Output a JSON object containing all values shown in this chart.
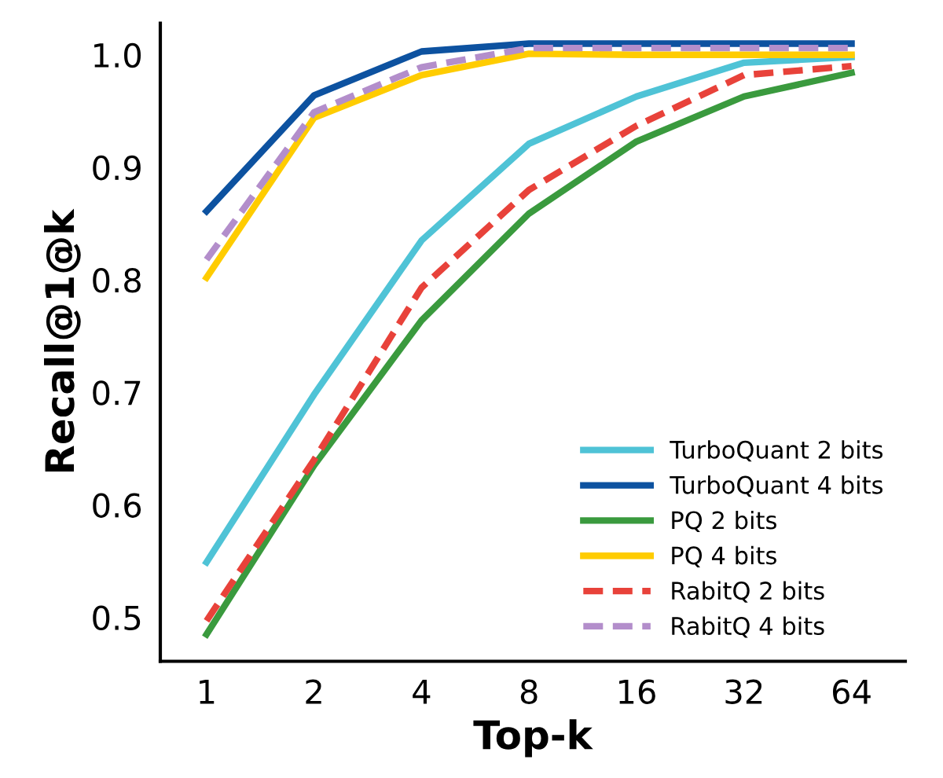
{
  "chart_data": {
    "type": "line",
    "xlabel": "Top-k",
    "ylabel": "Recall@1@k",
    "categories": [
      "1",
      "2",
      "4",
      "8",
      "16",
      "32",
      "64"
    ],
    "ylim": [
      0.461,
      1.028
    ],
    "yticks": [
      0.5,
      0.6,
      0.7,
      0.8,
      0.9,
      {
        "value": 1.0,
        "label": "1.0"
      }
    ],
    "grid": false,
    "legend": "bottom right",
    "series": [
      {
        "name": "TurboQuant 2 bits",
        "color": "#4fc3d6",
        "line_style": "solid",
        "values": [
          0.549,
          0.698,
          0.835,
          0.921,
          0.963,
          0.993,
          0.998
        ]
      },
      {
        "name": "TurboQuant 4 bits",
        "color": "#0d52a0",
        "line_style": "solid",
        "values": [
          0.861,
          0.964,
          1.003,
          1.01,
          1.01,
          1.01,
          1.01
        ]
      },
      {
        "name": "PQ 2 bits",
        "color": "#3a9a3e",
        "line_style": "solid",
        "values": [
          0.485,
          0.635,
          0.764,
          0.859,
          0.923,
          0.963,
          0.984
        ]
      },
      {
        "name": "PQ 4 bits",
        "color": "#ffcc00",
        "line_style": "solid",
        "values": [
          0.802,
          0.944,
          0.982,
          1.001,
          1.0,
          1.0,
          1.0
        ]
      },
      {
        "name": "RabitQ 2 bits",
        "color": "#e8423a",
        "line_style": "dashed",
        "values": [
          0.497,
          0.64,
          0.793,
          0.88,
          0.937,
          0.982,
          0.99
        ]
      },
      {
        "name": "RabitQ 4 bits",
        "color": "#b38ecb",
        "line_style": "dashed",
        "values": [
          0.818,
          0.949,
          0.989,
          1.006,
          1.006,
          1.006,
          1.006
        ]
      }
    ]
  }
}
